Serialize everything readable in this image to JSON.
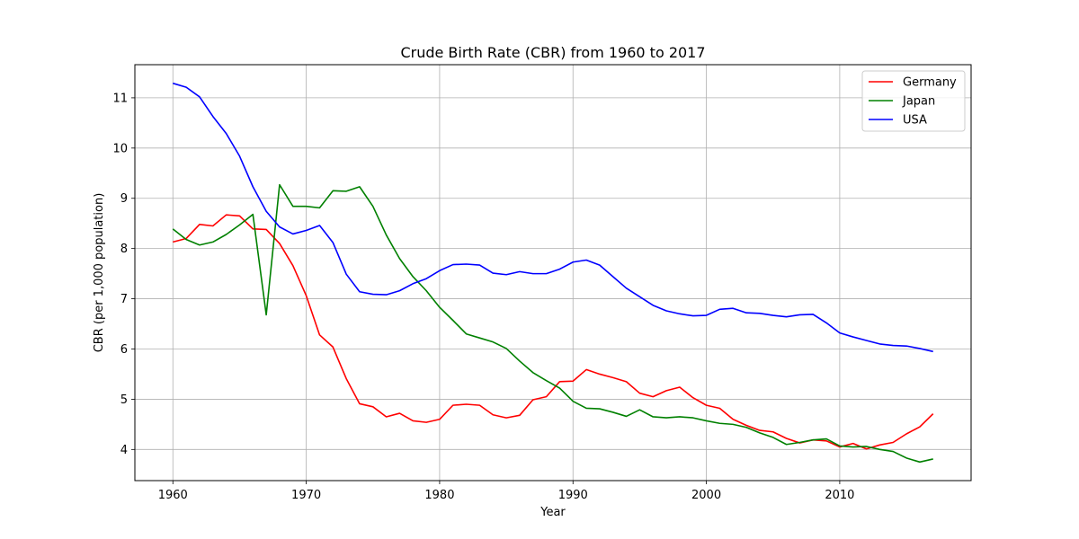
{
  "chart_data": {
    "type": "line",
    "title": "Crude Birth Rate (CBR) from 1960 to 2017",
    "xlabel": "Year",
    "ylabel": "CBR (per 1,000 population)",
    "xlim": [
      1957.15,
      2019.85
    ],
    "ylim": [
      3.38,
      11.66
    ],
    "xticks": [
      1960,
      1970,
      1980,
      1990,
      2000,
      2010
    ],
    "yticks": [
      4,
      5,
      6,
      7,
      8,
      9,
      10,
      11
    ],
    "grid": true,
    "legend_position": "top-right",
    "x": [
      1960,
      1961,
      1962,
      1963,
      1964,
      1965,
      1966,
      1967,
      1968,
      1969,
      1970,
      1971,
      1972,
      1973,
      1974,
      1975,
      1976,
      1977,
      1978,
      1979,
      1980,
      1981,
      1982,
      1983,
      1984,
      1985,
      1986,
      1987,
      1988,
      1989,
      1990,
      1991,
      1992,
      1993,
      1994,
      1995,
      1996,
      1997,
      1998,
      1999,
      2000,
      2001,
      2002,
      2003,
      2004,
      2005,
      2006,
      2007,
      2008,
      2009,
      2010,
      2011,
      2012,
      2013,
      2014,
      2015,
      2016,
      2017
    ],
    "series": [
      {
        "name": "Germany",
        "color": "#ff0000",
        "values": [
          8.13,
          8.2,
          8.48,
          8.45,
          8.67,
          8.65,
          8.39,
          8.38,
          8.1,
          7.66,
          7.06,
          6.28,
          6.04,
          5.41,
          4.91,
          4.85,
          4.65,
          4.72,
          4.57,
          4.54,
          4.6,
          4.88,
          4.9,
          4.88,
          4.69,
          4.63,
          4.68,
          4.99,
          5.05,
          5.35,
          5.36,
          5.59,
          5.5,
          5.43,
          5.35,
          5.12,
          5.05,
          5.17,
          5.24,
          5.03,
          4.88,
          4.82,
          4.6,
          4.48,
          4.38,
          4.35,
          4.22,
          4.13,
          4.19,
          4.17,
          4.05,
          4.12,
          4.01,
          4.09,
          4.14,
          4.31,
          4.45,
          4.71
        ]
      },
      {
        "name": "Japan",
        "color": "#008000",
        "values": [
          8.39,
          8.18,
          8.07,
          8.13,
          8.28,
          8.47,
          8.68,
          6.68,
          9.27,
          8.84,
          8.84,
          8.81,
          9.15,
          9.14,
          9.23,
          8.84,
          8.27,
          7.8,
          7.44,
          7.16,
          6.83,
          6.57,
          6.3,
          6.22,
          6.14,
          6.01,
          5.76,
          5.53,
          5.37,
          5.22,
          4.96,
          4.82,
          4.81,
          4.74,
          4.66,
          4.79,
          4.65,
          4.63,
          4.65,
          4.63,
          4.57,
          4.52,
          4.5,
          4.44,
          4.33,
          4.24,
          4.1,
          4.14,
          4.19,
          4.21,
          4.07,
          4.05,
          4.06,
          4.0,
          3.96,
          3.83,
          3.75,
          3.81
        ]
      },
      {
        "name": "USA",
        "color": "#0000ff",
        "values": [
          11.29,
          11.21,
          11.02,
          10.63,
          10.29,
          9.84,
          9.23,
          8.74,
          8.43,
          8.29,
          8.36,
          8.46,
          8.12,
          7.49,
          7.14,
          7.09,
          7.08,
          7.16,
          7.3,
          7.4,
          7.56,
          7.68,
          7.69,
          7.67,
          7.51,
          7.48,
          7.54,
          7.5,
          7.5,
          7.59,
          7.73,
          7.77,
          7.67,
          7.44,
          7.21,
          7.04,
          6.87,
          6.76,
          6.7,
          6.66,
          6.67,
          6.79,
          6.81,
          6.72,
          6.71,
          6.67,
          6.64,
          6.68,
          6.69,
          6.52,
          6.32,
          6.24,
          6.17,
          6.1,
          6.07,
          6.06,
          6.01,
          5.95
        ]
      }
    ]
  }
}
